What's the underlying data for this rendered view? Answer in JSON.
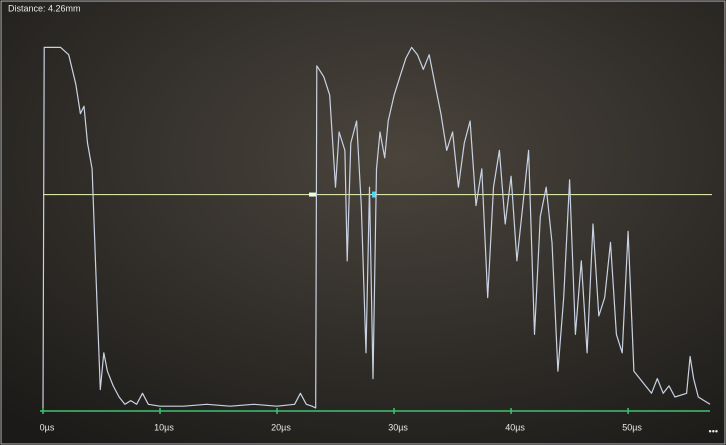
{
  "chart_data": {
    "type": "line",
    "title": "Distance: 4.26mm",
    "menu_label": "•••",
    "x": [
      0,
      0.1,
      1.5,
      2.2,
      2.8,
      3.2,
      3.5,
      3.8,
      4.2,
      4.6,
      4.9,
      5.2,
      5.5,
      6,
      6.5,
      7,
      7.5,
      8,
      8.5,
      9,
      10,
      12,
      14,
      16,
      18,
      20,
      21.5,
      22,
      22.5,
      23,
      23.3,
      23.4,
      24,
      24.5,
      25,
      25.3,
      25.8,
      26,
      26.3,
      26.8,
      27.2,
      27.6,
      27.9,
      28.2,
      28.5,
      28.8,
      29.2,
      29.5,
      30,
      30.5,
      31,
      31.5,
      32,
      32.5,
      33,
      33.5,
      34,
      34.5,
      35,
      35.5,
      36,
      36.5,
      37,
      37.5,
      38,
      38.5,
      39,
      39.5,
      40,
      40.5,
      41,
      41.5,
      42,
      42.5,
      43,
      43.5,
      44,
      44.5,
      45,
      45.5,
      46,
      46.5,
      47,
      47.5,
      48,
      48.5,
      49,
      49.5,
      50,
      50.5,
      51,
      51.5,
      52,
      52.5,
      53,
      53.5,
      54,
      55,
      55.3,
      55.6,
      56,
      56.5,
      57
    ],
    "series": [
      {
        "color": "#c9d2e3",
        "values": [
          0,
          98,
          98,
          96,
          88,
          80,
          82,
          72,
          65,
          30,
          5,
          15,
          10,
          6,
          3,
          1,
          2,
          1,
          4,
          1,
          0.5,
          0.5,
          1,
          0.5,
          1,
          0.5,
          1,
          4,
          1,
          0.5,
          0,
          93,
          90,
          85,
          60,
          75,
          70,
          40,
          72,
          78,
          55,
          15,
          60,
          8,
          65,
          75,
          68,
          78,
          85,
          90,
          95,
          98,
          96,
          92,
          96,
          88,
          80,
          70,
          75,
          60,
          72,
          78,
          55,
          65,
          30,
          60,
          70,
          50,
          63,
          40,
          55,
          70,
          20,
          52,
          60,
          45,
          10,
          30,
          62,
          20,
          40,
          15,
          50,
          25,
          30,
          45,
          20,
          15,
          48,
          10,
          8,
          6,
          4,
          8,
          4,
          6,
          3,
          4,
          14,
          8,
          3,
          2,
          1
        ]
      }
    ],
    "gate_level": 58,
    "xlim": [
      0,
      57
    ],
    "ylim": [
      0,
      100
    ],
    "xticks": [
      {
        "value": 0,
        "label": "0µs"
      },
      {
        "value": 10,
        "label": "10µs"
      },
      {
        "value": 20,
        "label": "20µs"
      },
      {
        "value": 30,
        "label": "30µs"
      },
      {
        "value": 40,
        "label": "40µs"
      },
      {
        "value": 50,
        "label": "50µs"
      }
    ],
    "axis_color": "#3fc26e",
    "gate_color": "#d8e4a4"
  }
}
